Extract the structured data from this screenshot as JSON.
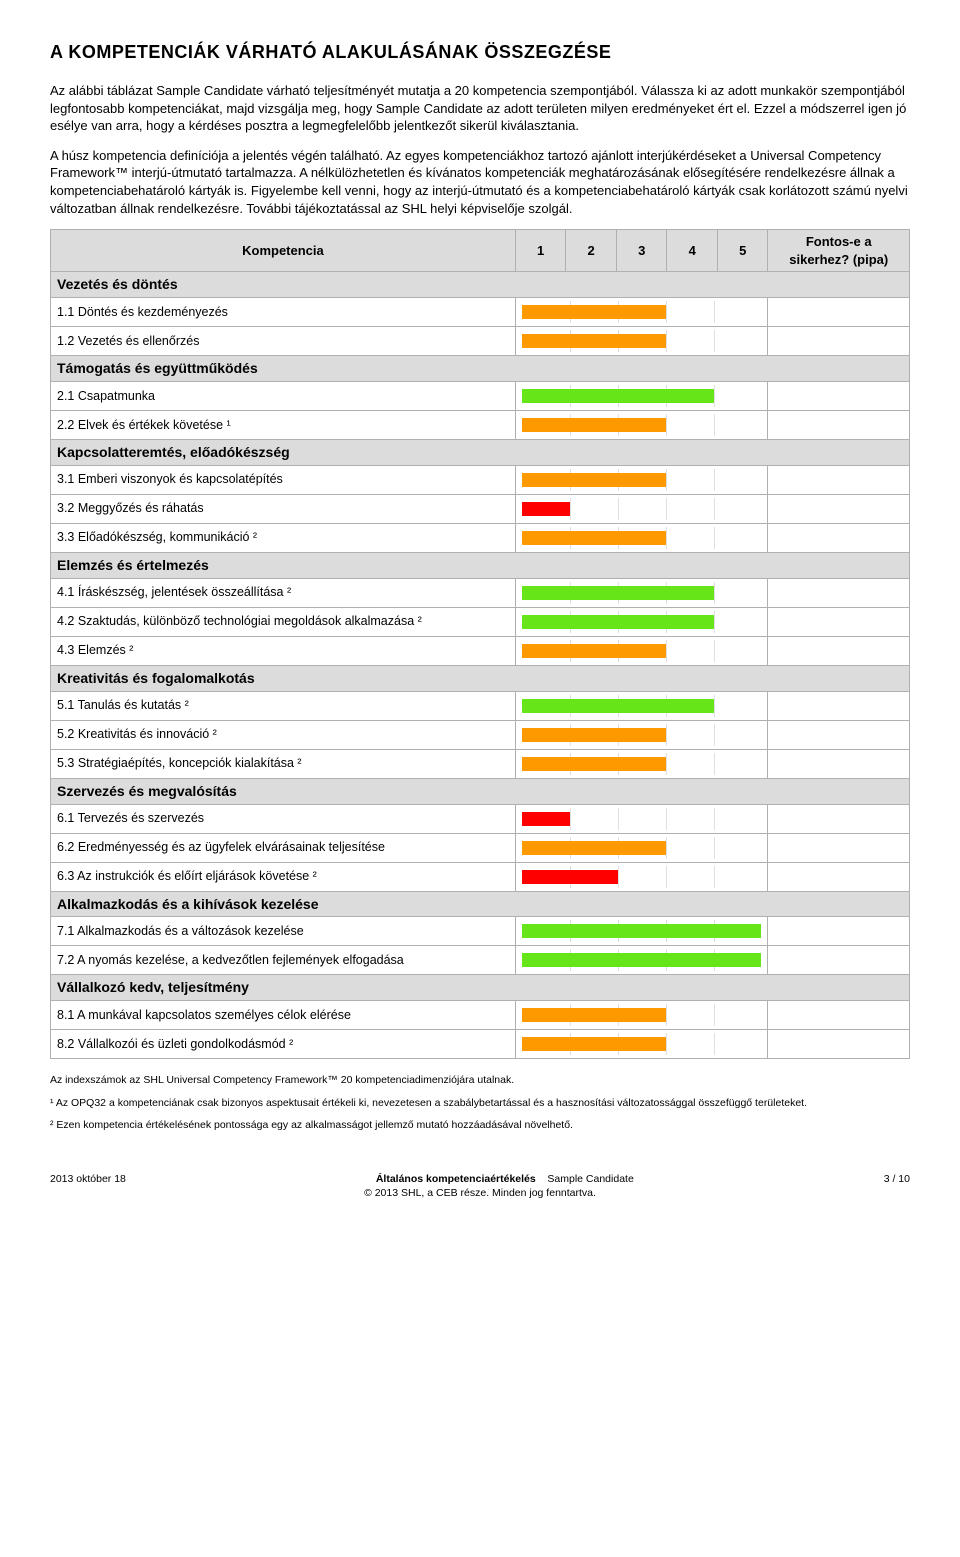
{
  "title": "A KOMPETENCIÁK VÁRHATÓ ALAKULÁSÁNAK ÖSSZEGZÉSE",
  "intro_paragraphs": [
    "Az alábbi táblázat Sample Candidate várható teljesítményét mutatja a 20 kompetencia szempontjából. Válassza ki az adott munkakör szempontjából legfontosabb kompetenciákat, majd vizsgálja meg, hogy Sample Candidate az adott területen milyen eredményeket ért el. Ezzel a módszerrel igen jó esélye van arra, hogy a kérdéses posztra a legmegfelelőbb jelentkezőt sikerül kiválasztania.",
    "A húsz kompetencia definíciója a jelentés végén található. Az egyes kompetenciákhoz tartozó ajánlott interjúkérdéseket a Universal Competency Framework™ interjú-útmutató tartalmazza. A nélkülözhetetlen és kívánatos kompetenciák meghatározásának elősegítésére rendelkezésre állnak a kompetenciabehatároló kártyák is. Figyelembe kell venni, hogy az interjú-útmutató és a kompetenciabehatároló kártyák csak korlátozott számú nyelvi változatban állnak rendelkezésre. További tájékoztatással az SHL helyi képviselője szolgál."
  ],
  "table_header": {
    "left": "Kompetencia",
    "cols": [
      "1",
      "2",
      "3",
      "4",
      "5"
    ],
    "right": "Fontos-e a sikerhez? (pipa)"
  },
  "colors": {
    "green": "#66e619",
    "orange": "#ff9900",
    "red": "#ff0000",
    "cat_bg": "#dcdcdc"
  },
  "rows": [
    {
      "type": "category",
      "label": "Vezetés és döntés"
    },
    {
      "type": "item",
      "label": "1.1 Döntés és kezdeményezés",
      "value": 3,
      "color": "#ff9900"
    },
    {
      "type": "item",
      "label": "1.2 Vezetés és ellenőrzés",
      "value": 3,
      "color": "#ff9900"
    },
    {
      "type": "category",
      "label": "Támogatás és együttműködés"
    },
    {
      "type": "item",
      "label": "2.1 Csapatmunka",
      "value": 4,
      "color": "#66e619"
    },
    {
      "type": "item",
      "label": "2.2 Elvek és értékek követése ¹",
      "value": 3,
      "color": "#ff9900"
    },
    {
      "type": "category",
      "label": "Kapcsolatteremtés, előadókészség"
    },
    {
      "type": "item",
      "label": "3.1 Emberi viszonyok és kapcsolatépítés",
      "value": 3,
      "color": "#ff9900"
    },
    {
      "type": "item",
      "label": "3.2 Meggyőzés és ráhatás",
      "value": 1,
      "color": "#ff0000"
    },
    {
      "type": "item",
      "label": "3.3 Előadókészség, kommunikáció ²",
      "value": 3,
      "color": "#ff9900"
    },
    {
      "type": "category",
      "label": "Elemzés és értelmezés"
    },
    {
      "type": "item",
      "label": "4.1 Íráskészség, jelentések összeállítása ²",
      "value": 4,
      "color": "#66e619"
    },
    {
      "type": "item",
      "label": "4.2 Szaktudás, különböző technológiai megoldások alkalmazása ²",
      "value": 4,
      "color": "#66e619"
    },
    {
      "type": "item",
      "label": "4.3 Elemzés ²",
      "value": 3,
      "color": "#ff9900"
    },
    {
      "type": "category",
      "label": "Kreativitás és fogalomalkotás"
    },
    {
      "type": "item",
      "label": "5.1 Tanulás és kutatás ²",
      "value": 4,
      "color": "#66e619"
    },
    {
      "type": "item",
      "label": "5.2 Kreativitás és innováció ²",
      "value": 3,
      "color": "#ff9900"
    },
    {
      "type": "item",
      "label": "5.3 Stratégiaépítés, koncepciók kialakítása ²",
      "value": 3,
      "color": "#ff9900"
    },
    {
      "type": "category",
      "label": "Szervezés és megvalósítás"
    },
    {
      "type": "item",
      "label": "6.1 Tervezés és szervezés",
      "value": 1,
      "color": "#ff0000"
    },
    {
      "type": "item",
      "label": "6.2 Eredményesség és az ügyfelek elvárásainak teljesítése",
      "value": 3,
      "color": "#ff9900"
    },
    {
      "type": "item",
      "label": "6.3 Az instrukciók és előírt eljárások követése ²",
      "value": 2,
      "color": "#ff0000"
    },
    {
      "type": "category",
      "label": "Alkalmazkodás és a kihívások kezelése"
    },
    {
      "type": "item",
      "label": "7.1 Alkalmazkodás és a változások kezelése",
      "value": 5,
      "color": "#66e619"
    },
    {
      "type": "item",
      "label": "7.2 A nyomás kezelése, a kedvezőtlen fejlemények elfogadása",
      "value": 5,
      "color": "#66e619"
    },
    {
      "type": "category",
      "label": "Vállalkozó kedv, teljesítmény"
    },
    {
      "type": "item",
      "label": "8.1 A munkával kapcsolatos személyes célok elérése",
      "value": 3,
      "color": "#ff9900"
    },
    {
      "type": "item",
      "label": "8.2 Vállalkozói és üzleti gondolkodásmód ²",
      "value": 3,
      "color": "#ff9900"
    }
  ],
  "footnotes": [
    "Az indexszámok az SHL Universal Competency Framework™ 20 kompetenciadimenziójára utalnak.",
    "¹ Az OPQ32 a kompetenciának csak bizonyos aspektusait értékeli ki, nevezetesen a szabálybetartással és a hasznosítási változatossággal összefüggő területeket.",
    "² Ezen kompetencia értékelésének pontossága egy az alkalmasságot jellemző mutató hozzáadásával növelhető."
  ],
  "footer": {
    "date": "2013 október 18",
    "title": "Általános kompetenciaértékelés",
    "candidate": "Sample Candidate",
    "page": "3 / 10",
    "copyright": "© 2013 SHL, a CEB része. Minden jog fenntartva."
  }
}
